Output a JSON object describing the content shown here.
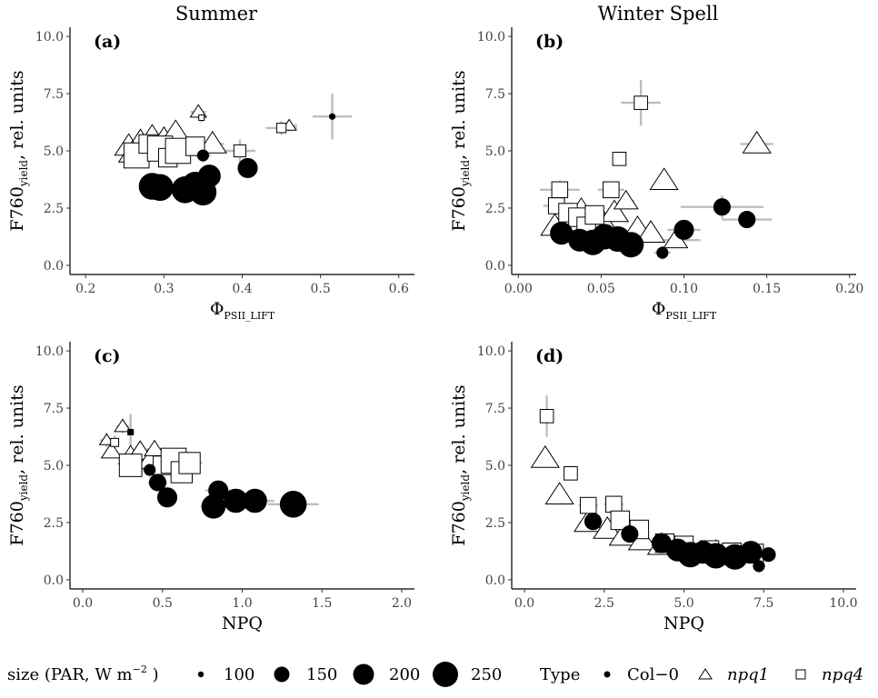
{
  "columns": [
    "Summer",
    "Winter Spell"
  ],
  "y_axis": {
    "label_main": "F760",
    "label_sub": "yield",
    "label_rest": ", rel. units",
    "ticks": [
      "0.0",
      "2.5",
      "5.0",
      "7.5",
      "10.0"
    ]
  },
  "legend": {
    "size_title_main": "size (PAR, W m",
    "size_title_sup": "−2",
    "size_title_end": " )",
    "sizes": [
      "100",
      "150",
      "200",
      "250"
    ],
    "type_title": "Type",
    "types": [
      "Col−0",
      "npq1",
      "npq4"
    ]
  },
  "chart_data": [
    {
      "panel": "(a)",
      "type": "scatter",
      "column": "Summer",
      "xlabel_main": "Φ",
      "xlabel_sub": "PSII_LIFT",
      "ylabel": "F760yield , rel. units",
      "xlim": [
        0.18,
        0.62
      ],
      "ylim": [
        -0.4,
        10.4
      ],
      "xticks": [
        0.2,
        0.3,
        0.4,
        0.5,
        0.6
      ],
      "xtick_labels": [
        "0.2",
        "0.3",
        "0.4",
        "0.5",
        "0.6"
      ],
      "yticks": [
        0,
        2.5,
        5,
        7.5,
        10
      ],
      "points": [
        {
          "t": "npq1",
          "x": 0.255,
          "y": 5.2,
          "par": 200,
          "ex": 0.01,
          "ey": 0.3
        },
        {
          "t": "npq1",
          "x": 0.27,
          "y": 5.4,
          "par": 200,
          "ex": 0.01,
          "ey": 0.3
        },
        {
          "t": "npq1",
          "x": 0.285,
          "y": 5.6,
          "par": 200,
          "ex": 0.01,
          "ey": 0.3
        },
        {
          "t": "npq1",
          "x": 0.3,
          "y": 5.5,
          "par": 200,
          "ex": 0.01,
          "ey": 0.3
        },
        {
          "t": "npq1",
          "x": 0.315,
          "y": 5.8,
          "par": 200,
          "ex": 0.01,
          "ey": 0.3
        },
        {
          "t": "npq1",
          "x": 0.3,
          "y": 5.1,
          "par": 200,
          "ex": 0.01,
          "ey": 0.3
        },
        {
          "t": "npq1",
          "x": 0.26,
          "y": 4.9,
          "par": 200,
          "ex": 0.01,
          "ey": 0.3
        },
        {
          "t": "npq1",
          "x": 0.344,
          "y": 6.7,
          "par": 140,
          "ex": 0.01,
          "ey": 0.25
        },
        {
          "t": "npq1",
          "x": 0.362,
          "y": 5.3,
          "par": 200,
          "ex": 0.015,
          "ey": 0.4
        },
        {
          "t": "npq1",
          "x": 0.46,
          "y": 6.1,
          "par": 130,
          "ex": 0.01,
          "ey": 0.25
        },
        {
          "t": "npq4",
          "x": 0.265,
          "y": 4.8,
          "par": 250,
          "ex": 0.015,
          "ey": 0.4
        },
        {
          "t": "npq4",
          "x": 0.28,
          "y": 5.3,
          "par": 200,
          "ex": 0.015,
          "ey": 0.4
        },
        {
          "t": "npq4",
          "x": 0.295,
          "y": 5.1,
          "par": 250,
          "ex": 0.015,
          "ey": 0.4
        },
        {
          "t": "npq4",
          "x": 0.305,
          "y": 4.7,
          "par": 200,
          "ex": 0.015,
          "ey": 0.4
        },
        {
          "t": "npq4",
          "x": 0.318,
          "y": 5.0,
          "par": 250,
          "ex": 0.015,
          "ey": 0.4
        },
        {
          "t": "npq4",
          "x": 0.34,
          "y": 5.2,
          "par": 200,
          "ex": 0.015,
          "ey": 0.4
        },
        {
          "t": "npq4",
          "x": 0.348,
          "y": 6.45,
          "par": 100,
          "ex": 0.005,
          "ey": 0.2
        },
        {
          "t": "npq4",
          "x": 0.397,
          "y": 5.0,
          "par": 150,
          "ex": 0.02,
          "ey": 0.5
        },
        {
          "t": "npq4",
          "x": 0.45,
          "y": 6.0,
          "par": 130,
          "ex": 0.02,
          "ey": 0.3
        },
        {
          "t": "col0",
          "x": 0.285,
          "y": 3.45,
          "par": 250,
          "ex": 0.01,
          "ey": 0.3
        },
        {
          "t": "col0",
          "x": 0.295,
          "y": 3.4,
          "par": 250,
          "ex": 0.01,
          "ey": 0.3
        },
        {
          "t": "col0",
          "x": 0.327,
          "y": 3.3,
          "par": 250,
          "ex": 0.01,
          "ey": 0.3
        },
        {
          "t": "col0",
          "x": 0.34,
          "y": 3.5,
          "par": 250,
          "ex": 0.01,
          "ey": 0.3
        },
        {
          "t": "col0",
          "x": 0.35,
          "y": 3.2,
          "par": 250,
          "ex": 0.01,
          "ey": 0.3
        },
        {
          "t": "col0",
          "x": 0.358,
          "y": 3.9,
          "par": 220,
          "ex": 0.01,
          "ey": 0.3
        },
        {
          "t": "col0",
          "x": 0.35,
          "y": 4.8,
          "par": 140,
          "ex": 0.01,
          "ey": 0.3
        },
        {
          "t": "col0",
          "x": 0.407,
          "y": 4.25,
          "par": 200,
          "ex": 0.01,
          "ey": 0.3
        },
        {
          "t": "col0",
          "x": 0.515,
          "y": 6.5,
          "par": 100,
          "ex": 0.025,
          "ey": 1.0
        }
      ]
    },
    {
      "panel": "(b)",
      "type": "scatter",
      "column": "Winter Spell",
      "xlabel_main": "Φ",
      "xlabel_sub": "PSII_LIFT",
      "ylabel": "F760yield , rel. units",
      "xlim": [
        -0.004,
        0.204
      ],
      "ylim": [
        -0.4,
        10.4
      ],
      "xticks": [
        0.0,
        0.05,
        0.1,
        0.15,
        0.2
      ],
      "xtick_labels": [
        "0.00",
        "0.05",
        "0.10",
        "0.15",
        "0.20"
      ],
      "yticks": [
        0,
        2.5,
        5,
        7.5,
        10
      ],
      "points": [
        {
          "t": "npq1",
          "x": 0.022,
          "y": 1.7,
          "par": 200,
          "ex": 0.005,
          "ey": 0.3
        },
        {
          "t": "npq1",
          "x": 0.03,
          "y": 1.9,
          "par": 200,
          "ex": 0.005,
          "ey": 0.3
        },
        {
          "t": "npq1",
          "x": 0.038,
          "y": 2.4,
          "par": 200,
          "ex": 0.005,
          "ey": 0.3
        },
        {
          "t": "npq1",
          "x": 0.05,
          "y": 2.0,
          "par": 200,
          "ex": 0.005,
          "ey": 0.3
        },
        {
          "t": "npq1",
          "x": 0.058,
          "y": 2.3,
          "par": 200,
          "ex": 0.005,
          "ey": 0.3
        },
        {
          "t": "npq1",
          "x": 0.065,
          "y": 2.8,
          "par": 180,
          "ex": 0.005,
          "ey": 0.3
        },
        {
          "t": "npq1",
          "x": 0.072,
          "y": 1.6,
          "par": 200,
          "ex": 0.005,
          "ey": 0.3
        },
        {
          "t": "npq1",
          "x": 0.08,
          "y": 1.4,
          "par": 200,
          "ex": 0.005,
          "ey": 0.3
        },
        {
          "t": "npq1",
          "x": 0.095,
          "y": 1.1,
          "par": 180,
          "ex": 0.015,
          "ey": 0.3
        },
        {
          "t": "npq1",
          "x": 0.088,
          "y": 3.7,
          "par": 200,
          "ex": 0.005,
          "ey": 0.4
        },
        {
          "t": "npq1",
          "x": 0.144,
          "y": 5.3,
          "par": 200,
          "ex": 0.01,
          "ey": 0.3
        },
        {
          "t": "npq4",
          "x": 0.025,
          "y": 3.3,
          "par": 180,
          "ex": 0.012,
          "ey": 0.4
        },
        {
          "t": "npq4",
          "x": 0.023,
          "y": 2.6,
          "par": 180,
          "ex": 0.008,
          "ey": 0.4
        },
        {
          "t": "npq4",
          "x": 0.03,
          "y": 2.3,
          "par": 200,
          "ex": 0.008,
          "ey": 0.3
        },
        {
          "t": "npq4",
          "x": 0.036,
          "y": 2.1,
          "par": 200,
          "ex": 0.008,
          "ey": 0.3
        },
        {
          "t": "npq4",
          "x": 0.041,
          "y": 1.7,
          "par": 200,
          "ex": 0.008,
          "ey": 0.3
        },
        {
          "t": "npq4",
          "x": 0.046,
          "y": 2.2,
          "par": 200,
          "ex": 0.008,
          "ey": 0.3
        },
        {
          "t": "npq4",
          "x": 0.056,
          "y": 3.3,
          "par": 180,
          "ex": 0.008,
          "ey": 0.3
        },
        {
          "t": "npq4",
          "x": 0.061,
          "y": 4.65,
          "par": 160,
          "ex": 0.004,
          "ey": 0.3
        },
        {
          "t": "npq4",
          "x": 0.074,
          "y": 7.1,
          "par": 160,
          "ex": 0.012,
          "ey": 1.0
        },
        {
          "t": "col0",
          "x": 0.026,
          "y": 1.4,
          "par": 220,
          "ex": 0.008,
          "ey": 0.3
        },
        {
          "t": "col0",
          "x": 0.037,
          "y": 1.1,
          "par": 220,
          "ex": 0.008,
          "ey": 0.3
        },
        {
          "t": "col0",
          "x": 0.045,
          "y": 1.0,
          "par": 240,
          "ex": 0.008,
          "ey": 0.3
        },
        {
          "t": "col0",
          "x": 0.052,
          "y": 1.25,
          "par": 240,
          "ex": 0.008,
          "ey": 0.3
        },
        {
          "t": "col0",
          "x": 0.06,
          "y": 1.15,
          "par": 240,
          "ex": 0.008,
          "ey": 0.3
        },
        {
          "t": "col0",
          "x": 0.068,
          "y": 0.9,
          "par": 240,
          "ex": 0.008,
          "ey": 0.3
        },
        {
          "t": "col0",
          "x": 0.087,
          "y": 0.55,
          "par": 140,
          "ex": 0.005,
          "ey": 0.3
        },
        {
          "t": "col0",
          "x": 0.1,
          "y": 1.55,
          "par": 200,
          "ex": 0.01,
          "ey": 0.4
        },
        {
          "t": "col0",
          "x": 0.123,
          "y": 2.55,
          "par": 180,
          "ex": 0.025,
          "ey": 0.5
        },
        {
          "t": "col0",
          "x": 0.138,
          "y": 2.0,
          "par": 180,
          "ex": 0.015,
          "ey": 0.3
        }
      ]
    },
    {
      "panel": "(c)",
      "type": "scatter",
      "column": "Summer",
      "xlabel_main": "NPQ",
      "xlabel_sub": "",
      "ylabel": "F760yield , rel. units",
      "xlim": [
        -0.08,
        2.08
      ],
      "ylim": [
        -0.4,
        10.4
      ],
      "xticks": [
        0.0,
        0.5,
        1.0,
        1.5,
        2.0
      ],
      "xtick_labels": [
        "0.0",
        "0.5",
        "1.0",
        "1.5",
        "2.0"
      ],
      "yticks": [
        0,
        2.5,
        5,
        7.5,
        10
      ],
      "points": [
        {
          "t": "npq1",
          "x": 0.15,
          "y": 6.1,
          "par": 130,
          "ex": 0.04,
          "ey": 0.3
        },
        {
          "t": "npq1",
          "x": 0.18,
          "y": 5.6,
          "par": 160,
          "ex": 0.04,
          "ey": 0.3
        },
        {
          "t": "npq1",
          "x": 0.25,
          "y": 6.7,
          "par": 140,
          "ex": 0.04,
          "ey": 0.3
        },
        {
          "t": "npq1",
          "x": 0.3,
          "y": 5.4,
          "par": 180,
          "ex": 0.05,
          "ey": 0.3
        },
        {
          "t": "npq1",
          "x": 0.36,
          "y": 5.6,
          "par": 180,
          "ex": 0.05,
          "ey": 0.3
        },
        {
          "t": "npq1",
          "x": 0.42,
          "y": 5.2,
          "par": 180,
          "ex": 0.05,
          "ey": 0.3
        },
        {
          "t": "npq1",
          "x": 0.45,
          "y": 5.7,
          "par": 160,
          "ex": 0.05,
          "ey": 0.3
        },
        {
          "t": "npq4",
          "x": 0.2,
          "y": 6.0,
          "par": 120,
          "ex": 0.03,
          "ey": 0.3
        },
        {
          "t": "npq4",
          "x": 0.3,
          "y": 6.45,
          "par": 100,
          "ex": 0.02,
          "ey": 0.8
        },
        {
          "t": "npq4",
          "x": 0.3,
          "y": 5.0,
          "par": 230,
          "ex": 0.05,
          "ey": 0.4
        },
        {
          "t": "npq4",
          "x": 0.5,
          "y": 5.0,
          "par": 200,
          "ex": 0.06,
          "ey": 0.4
        },
        {
          "t": "npq4",
          "x": 0.57,
          "y": 5.2,
          "par": 250,
          "ex": 0.07,
          "ey": 0.4
        },
        {
          "t": "npq4",
          "x": 0.62,
          "y": 4.7,
          "par": 220,
          "ex": 0.07,
          "ey": 0.4
        },
        {
          "t": "npq4",
          "x": 0.67,
          "y": 5.1,
          "par": 220,
          "ex": 0.08,
          "ey": 0.4
        },
        {
          "t": "col0",
          "x": 0.3,
          "y": 6.45,
          "par": 100,
          "ex": 0.02,
          "ey": 0.5
        },
        {
          "t": "col0",
          "x": 0.42,
          "y": 4.8,
          "par": 140,
          "ex": 0.05,
          "ey": 0.3
        },
        {
          "t": "col0",
          "x": 0.47,
          "y": 4.25,
          "par": 180,
          "ex": 0.06,
          "ey": 0.3
        },
        {
          "t": "col0",
          "x": 0.53,
          "y": 3.6,
          "par": 200,
          "ex": 0.06,
          "ey": 0.3
        },
        {
          "t": "col0",
          "x": 0.82,
          "y": 3.2,
          "par": 230,
          "ex": 0.08,
          "ey": 0.3
        },
        {
          "t": "col0",
          "x": 0.85,
          "y": 3.9,
          "par": 200,
          "ex": 0.08,
          "ey": 0.3
        },
        {
          "t": "col0",
          "x": 0.96,
          "y": 3.45,
          "par": 230,
          "ex": 0.1,
          "ey": 0.3
        },
        {
          "t": "col0",
          "x": 1.08,
          "y": 3.45,
          "par": 230,
          "ex": 0.12,
          "ey": 0.3
        },
        {
          "t": "col0",
          "x": 1.32,
          "y": 3.3,
          "par": 250,
          "ex": 0.16,
          "ey": 0.3
        }
      ]
    },
    {
      "panel": "(d)",
      "type": "scatter",
      "column": "Winter Spell",
      "xlabel_main": "NPQ",
      "xlabel_sub": "",
      "ylabel": "F760yield , rel. units",
      "xlim": [
        -0.4,
        10.4
      ],
      "ylim": [
        -0.4,
        10.4
      ],
      "xticks": [
        0,
        2.5,
        5,
        7.5,
        10
      ],
      "xtick_labels": [
        "0.0",
        "2.5",
        "5.0",
        "7.5",
        "10.0"
      ],
      "yticks": [
        0,
        2.5,
        5,
        7.5,
        10
      ],
      "points": [
        {
          "t": "npq1",
          "x": 0.65,
          "y": 5.3,
          "par": 200,
          "ex": 0.2,
          "ey": 0.3
        },
        {
          "t": "npq1",
          "x": 1.1,
          "y": 3.7,
          "par": 200,
          "ex": 0.2,
          "ey": 0.4
        },
        {
          "t": "npq1",
          "x": 2.0,
          "y": 2.5,
          "par": 200,
          "ex": 0.3,
          "ey": 0.3
        },
        {
          "t": "npq1",
          "x": 2.6,
          "y": 2.2,
          "par": 200,
          "ex": 0.3,
          "ey": 0.3
        },
        {
          "t": "npq1",
          "x": 3.1,
          "y": 1.9,
          "par": 200,
          "ex": 0.3,
          "ey": 0.3
        },
        {
          "t": "npq1",
          "x": 3.7,
          "y": 1.7,
          "par": 200,
          "ex": 0.3,
          "ey": 0.3
        },
        {
          "t": "npq1",
          "x": 4.3,
          "y": 1.5,
          "par": 200,
          "ex": 0.3,
          "ey": 0.3
        },
        {
          "t": "npq1",
          "x": 5.2,
          "y": 1.3,
          "par": 200,
          "ex": 0.3,
          "ey": 0.3
        },
        {
          "t": "npq1",
          "x": 6.0,
          "y": 1.2,
          "par": 200,
          "ex": 0.3,
          "ey": 0.3
        },
        {
          "t": "npq4",
          "x": 0.7,
          "y": 7.15,
          "par": 160,
          "ex": 0.2,
          "ey": 0.9
        },
        {
          "t": "npq4",
          "x": 1.45,
          "y": 4.65,
          "par": 160,
          "ex": 0.2,
          "ey": 0.3
        },
        {
          "t": "npq4",
          "x": 2.0,
          "y": 3.25,
          "par": 180,
          "ex": 0.3,
          "ey": 0.3
        },
        {
          "t": "npq4",
          "x": 2.8,
          "y": 3.3,
          "par": 180,
          "ex": 0.3,
          "ey": 0.3
        },
        {
          "t": "npq4",
          "x": 3.0,
          "y": 2.6,
          "par": 200,
          "ex": 0.3,
          "ey": 0.3
        },
        {
          "t": "npq4",
          "x": 3.6,
          "y": 2.2,
          "par": 200,
          "ex": 0.3,
          "ey": 0.3
        },
        {
          "t": "npq4",
          "x": 4.4,
          "y": 1.6,
          "par": 200,
          "ex": 0.4,
          "ey": 0.3
        },
        {
          "t": "npq4",
          "x": 5.0,
          "y": 1.5,
          "par": 200,
          "ex": 0.4,
          "ey": 0.3
        },
        {
          "t": "npq4",
          "x": 5.8,
          "y": 1.3,
          "par": 200,
          "ex": 0.4,
          "ey": 0.3
        },
        {
          "t": "npq4",
          "x": 6.5,
          "y": 1.2,
          "par": 200,
          "ex": 0.4,
          "ey": 0.3
        },
        {
          "t": "npq4",
          "x": 7.2,
          "y": 1.15,
          "par": 200,
          "ex": 0.4,
          "ey": 0.3
        },
        {
          "t": "col0",
          "x": 2.15,
          "y": 2.55,
          "par": 180,
          "ex": 0.3,
          "ey": 0.3
        },
        {
          "t": "col0",
          "x": 3.3,
          "y": 2.0,
          "par": 180,
          "ex": 0.3,
          "ey": 0.3
        },
        {
          "t": "col0",
          "x": 4.3,
          "y": 1.6,
          "par": 200,
          "ex": 0.3,
          "ey": 0.3
        },
        {
          "t": "col0",
          "x": 4.8,
          "y": 1.3,
          "par": 220,
          "ex": 0.3,
          "ey": 0.3
        },
        {
          "t": "col0",
          "x": 5.2,
          "y": 1.1,
          "par": 240,
          "ex": 0.3,
          "ey": 0.3
        },
        {
          "t": "col0",
          "x": 5.6,
          "y": 1.2,
          "par": 220,
          "ex": 0.3,
          "ey": 0.3
        },
        {
          "t": "col0",
          "x": 6.0,
          "y": 1.05,
          "par": 240,
          "ex": 0.3,
          "ey": 0.3
        },
        {
          "t": "col0",
          "x": 6.6,
          "y": 1.0,
          "par": 240,
          "ex": 0.3,
          "ey": 0.3
        },
        {
          "t": "col0",
          "x": 7.1,
          "y": 1.2,
          "par": 220,
          "ex": 0.3,
          "ey": 0.3
        },
        {
          "t": "col0",
          "x": 7.35,
          "y": 0.6,
          "par": 140,
          "ex": 0.2,
          "ey": 0.3
        },
        {
          "t": "col0",
          "x": 7.65,
          "y": 1.1,
          "par": 160,
          "ex": 0.2,
          "ey": 0.3
        }
      ]
    }
  ]
}
